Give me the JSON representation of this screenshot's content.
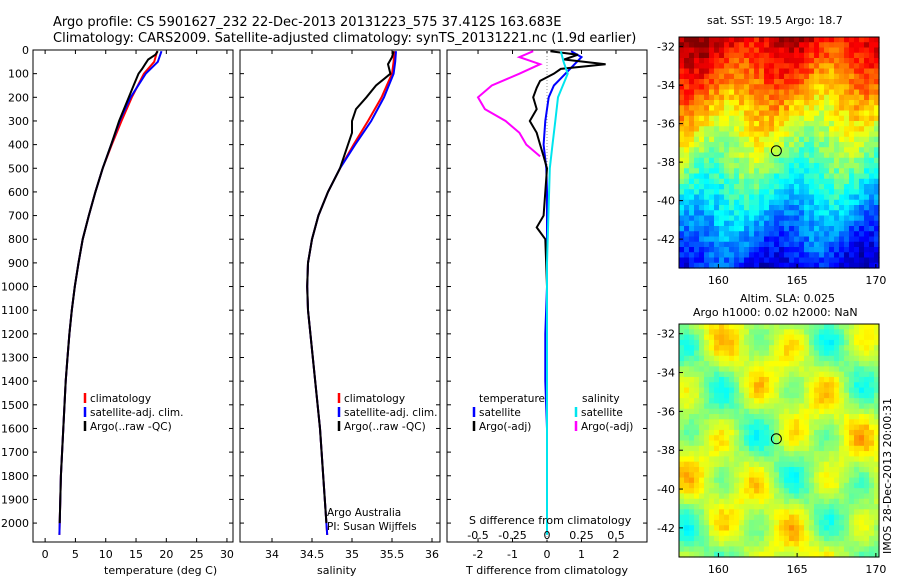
{
  "header": {
    "line1": "Argo profile: CS 5901627_232 22-Dec-2013 20131223_575 37.412S 163.683E",
    "line2": "Climatology: CARS2009. Satellite-adjusted climatology: synTS_20131221.nc (1.9d earlier)"
  },
  "colors": {
    "climatology": "#ff0000",
    "satellite": "#0000ff",
    "argo": "#000000",
    "sal_satellite": "#00e5ee",
    "sal_argo": "#ff00ff"
  },
  "chart_data": [
    {
      "type": "line",
      "name": "temperature-profile",
      "xlabel": "temperature (deg C)",
      "ylabel": "",
      "xlim": [
        -2,
        31
      ],
      "ylim": [
        2080,
        0
      ],
      "xticks": [
        0,
        5,
        10,
        15,
        20,
        25,
        30
      ],
      "yticks": [
        0,
        100,
        200,
        300,
        400,
        500,
        600,
        700,
        800,
        900,
        1000,
        1100,
        1200,
        1300,
        1400,
        1500,
        1600,
        1700,
        1800,
        1900,
        2000
      ],
      "legend": [
        "climatology",
        "satellite-adj. clim.",
        "Argo(..raw -QC)"
      ],
      "series": [
        {
          "name": "climatology",
          "depth": [
            5,
            50,
            100,
            200,
            300,
            400,
            500,
            600,
            700,
            800,
            900,
            1000,
            1100,
            1200,
            1300,
            1400,
            1500,
            1600,
            1700,
            1800,
            1900,
            2000,
            2050
          ],
          "values": [
            18.5,
            18.0,
            16.3,
            14.3,
            12.6,
            11.0,
            9.5,
            8.3,
            7.2,
            6.2,
            5.5,
            4.9,
            4.4,
            4.0,
            3.7,
            3.4,
            3.2,
            3.0,
            2.8,
            2.6,
            2.5,
            2.4,
            2.35
          ]
        },
        {
          "name": "satellite-adj. clim.",
          "depth": [
            5,
            50,
            100,
            200,
            300,
            400,
            500,
            600,
            700,
            800,
            900,
            1000,
            1100,
            1200,
            1300,
            1400,
            1500,
            1600,
            1700,
            1800,
            1900,
            2000,
            2050
          ],
          "values": [
            19.2,
            18.6,
            16.6,
            14.1,
            12.3,
            10.9,
            9.5,
            8.3,
            7.2,
            6.2,
            5.5,
            4.9,
            4.4,
            4.0,
            3.7,
            3.4,
            3.2,
            3.0,
            2.8,
            2.6,
            2.5,
            2.4,
            2.35
          ]
        },
        {
          "name": "Argo(..raw -QC)",
          "depth": [
            5,
            20,
            40,
            60,
            80,
            100,
            150,
            200,
            300,
            400,
            500,
            600,
            700,
            800,
            900,
            1000,
            1100,
            1200,
            1300,
            1400,
            1500,
            1600,
            1700,
            1800,
            1900,
            2000
          ],
          "values": [
            18.6,
            18.2,
            17.0,
            16.5,
            16.0,
            15.4,
            14.6,
            13.8,
            12.2,
            10.9,
            9.5,
            8.3,
            7.2,
            6.2,
            5.5,
            4.9,
            4.4,
            4.0,
            3.7,
            3.4,
            3.2,
            3.0,
            2.8,
            2.6,
            2.5,
            2.4
          ]
        }
      ]
    },
    {
      "type": "line",
      "name": "salinity-profile",
      "xlabel": "salinity",
      "xlim": [
        33.6,
        36.1
      ],
      "ylim": [
        2080,
        0
      ],
      "xticks": [
        34,
        34.5,
        35,
        35.5,
        36
      ],
      "xticklabels": [
        "34",
        "34.5",
        "35",
        "35.5",
        "36"
      ],
      "legend": [
        "climatology",
        "satellite-adj. clim.",
        "Argo(..raw -QC)"
      ],
      "credit": [
        "Argo Australia",
        "PI: Susan Wijffels"
      ],
      "series": [
        {
          "name": "climatology",
          "depth": [
            5,
            50,
            100,
            200,
            300,
            400,
            500,
            600,
            700,
            800,
            900,
            1000,
            1100,
            1200,
            1300,
            1400,
            1500,
            1600,
            1700,
            1800,
            1900,
            2000,
            2050
          ],
          "values": [
            35.53,
            35.52,
            35.5,
            35.37,
            35.2,
            35.02,
            34.85,
            34.7,
            34.58,
            34.5,
            34.45,
            34.44,
            34.45,
            34.48,
            34.51,
            34.54,
            34.57,
            34.6,
            34.62,
            34.64,
            34.66,
            34.68,
            34.69
          ]
        },
        {
          "name": "satellite-adj. clim.",
          "depth": [
            5,
            50,
            100,
            200,
            300,
            400,
            500,
            600,
            700,
            800,
            900,
            1000,
            1100,
            1200,
            1300,
            1400,
            1500,
            1600,
            1700,
            1800,
            1900,
            2000,
            2050
          ],
          "values": [
            35.55,
            35.54,
            35.52,
            35.4,
            35.24,
            35.04,
            34.85,
            34.7,
            34.58,
            34.5,
            34.45,
            34.44,
            34.45,
            34.48,
            34.51,
            34.54,
            34.57,
            34.6,
            34.62,
            34.64,
            34.66,
            34.68,
            34.69
          ]
        },
        {
          "name": "Argo(..raw -QC)",
          "depth": [
            5,
            30,
            60,
            100,
            150,
            200,
            250,
            300,
            350,
            400,
            450,
            500,
            600,
            700,
            800,
            900,
            1000,
            1100,
            1200,
            1300,
            1400,
            1500,
            1600,
            1700,
            1800,
            1900,
            2000
          ],
          "values": [
            35.52,
            35.5,
            35.45,
            35.48,
            35.3,
            35.18,
            35.05,
            35.0,
            35.0,
            34.95,
            34.9,
            34.85,
            34.7,
            34.58,
            34.5,
            34.45,
            34.44,
            34.45,
            34.48,
            34.51,
            34.54,
            34.57,
            34.6,
            34.62,
            34.64,
            34.66,
            34.68
          ]
        }
      ]
    },
    {
      "type": "line",
      "name": "difference-profile",
      "xlabel": "T difference from climatology",
      "xlabel_top": "S difference from climatology",
      "xlim": [
        -2.9,
        2.9
      ],
      "ylim": [
        2080,
        0
      ],
      "xticks": [
        -2,
        -1,
        0,
        1,
        2
      ],
      "xticklabels_T": [
        "-2",
        "-1",
        "0",
        "1",
        "2"
      ],
      "xticklabels_S": [
        "-0.5",
        "-0.25",
        "0",
        "0.25",
        "0.5"
      ],
      "legend_temperature": {
        "title": "temperature",
        "items": [
          "satellite",
          "Argo(-adj)"
        ]
      },
      "legend_salinity": {
        "title": "salinity",
        "items": [
          "satellite",
          "Argo(-adj)"
        ]
      },
      "series": [
        {
          "name": "T satellite",
          "color_key": "satellite",
          "depth": [
            5,
            30,
            60,
            90,
            120,
            150,
            200,
            250,
            300,
            400,
            500,
            600,
            800,
            1000,
            1200,
            1400,
            1600,
            1800,
            2000
          ],
          "values": [
            0.7,
            1.0,
            0.8,
            0.6,
            0.4,
            0.2,
            0.05,
            0.0,
            -0.05,
            -0.1,
            -0.02,
            0.0,
            0.0,
            0.0,
            -0.05,
            -0.05,
            0.0,
            0.0,
            0.0
          ]
        },
        {
          "name": "T Argo(-adj)",
          "color_key": "argo",
          "depth": [
            5,
            20,
            40,
            60,
            80,
            100,
            130,
            160,
            200,
            250,
            300,
            350,
            400,
            450,
            500,
            600,
            700,
            750,
            800,
            1000,
            1200,
            1400,
            1600,
            1800,
            2000
          ],
          "values": [
            0.1,
            0.9,
            0.5,
            1.7,
            0.4,
            0.2,
            -0.2,
            -0.3,
            -0.4,
            -0.3,
            -0.5,
            -0.3,
            -0.2,
            -0.1,
            0.0,
            -0.05,
            -0.1,
            -0.3,
            -0.05,
            0.0,
            0.0,
            0.0,
            0.0,
            0.0,
            0.0
          ]
        },
        {
          "name": "S satellite",
          "color_key": "sal_satellite",
          "depth": [
            5,
            50,
            100,
            200,
            300,
            400,
            500,
            700,
            900,
            1100,
            1300,
            1500,
            1700,
            1900,
            2050
          ],
          "values": [
            0.1,
            0.12,
            0.15,
            0.08,
            0.06,
            0.04,
            0.02,
            0.01,
            0.0,
            0.0,
            0.0,
            0.0,
            0.0,
            0.0,
            0.0
          ]
        },
        {
          "name": "S Argo(-adj)",
          "color_key": "sal_argo",
          "depth": [
            5,
            30,
            60,
            100,
            150,
            200,
            250,
            300,
            350,
            400,
            450
          ],
          "values": [
            -0.1,
            -0.2,
            -0.05,
            -0.2,
            -0.4,
            -0.5,
            -0.45,
            -0.3,
            -0.2,
            -0.15,
            -0.05
          ]
        }
      ]
    },
    {
      "type": "heatmap",
      "name": "sst-map",
      "title": "sat. SST: 19.5 Argo: 18.7",
      "xlim": [
        157.5,
        170.2
      ],
      "ylim": [
        -43.5,
        -31.5
      ],
      "xticks": [
        160,
        165,
        170
      ],
      "yticks": [
        -32,
        -34,
        -36,
        -38,
        -40,
        -42
      ],
      "marker": {
        "lon": 163.683,
        "lat": -37.412
      }
    },
    {
      "type": "heatmap",
      "name": "sla-map",
      "title": "Altim. SLA: 0.025",
      "subtitle": "Argo h1000: 0.02 h2000: NaN",
      "xlim": [
        157.5,
        170.2
      ],
      "ylim": [
        -43.5,
        -31.5
      ],
      "xticks": [
        160,
        165,
        170
      ],
      "yticks": [
        -32,
        -34,
        -36,
        -38,
        -40,
        -42
      ],
      "marker": {
        "lon": 163.683,
        "lat": -37.412
      }
    }
  ],
  "footer": {
    "timestamp": "IMOS 28-Dec-2013 20:00:31"
  }
}
